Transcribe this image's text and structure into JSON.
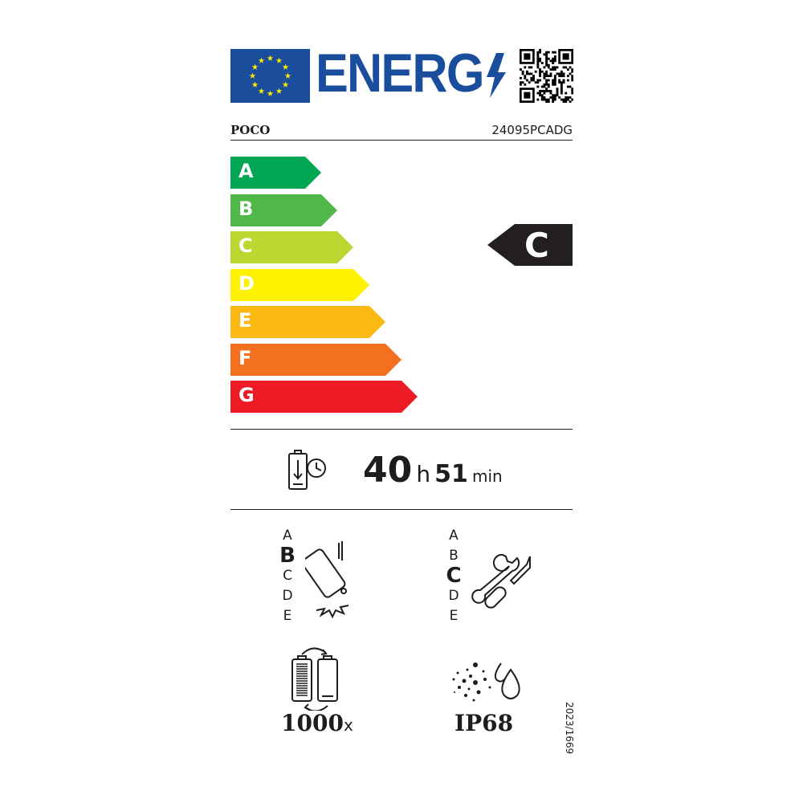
{
  "header": {
    "energy_word": "ENERG",
    "brand": "POCO",
    "model": "24095PCADG"
  },
  "scale": {
    "classes": [
      "A",
      "B",
      "C",
      "D",
      "E",
      "F",
      "G"
    ],
    "colors": [
      "#00a651",
      "#50b848",
      "#bed630",
      "#fff200",
      "#fdb913",
      "#f37021",
      "#ed1c24"
    ],
    "rating": "C",
    "rating_color": "#231f20"
  },
  "battery_endurance": {
    "hours": "40",
    "hours_unit": "h",
    "minutes": "51",
    "minutes_unit": "min",
    "icon": "battery-clock-icon"
  },
  "drop_resistance": {
    "classes": [
      "A",
      "B",
      "C",
      "D",
      "E"
    ],
    "selected": "B",
    "icon": "phone-drop-icon"
  },
  "repairability": {
    "classes": [
      "A",
      "B",
      "C",
      "D",
      "E"
    ],
    "selected": "C",
    "icon": "wrench-screwdriver-icon"
  },
  "battery_cycles": {
    "value": "1000",
    "unit": "x",
    "icon": "battery-cycle-icon"
  },
  "ingress_protection": {
    "value": "IP68",
    "icon": "dust-water-icon"
  },
  "regulation": "2023/1669",
  "colors": {
    "eu_blue": "#1a4d9c",
    "eu_star": "#ffed00"
  }
}
